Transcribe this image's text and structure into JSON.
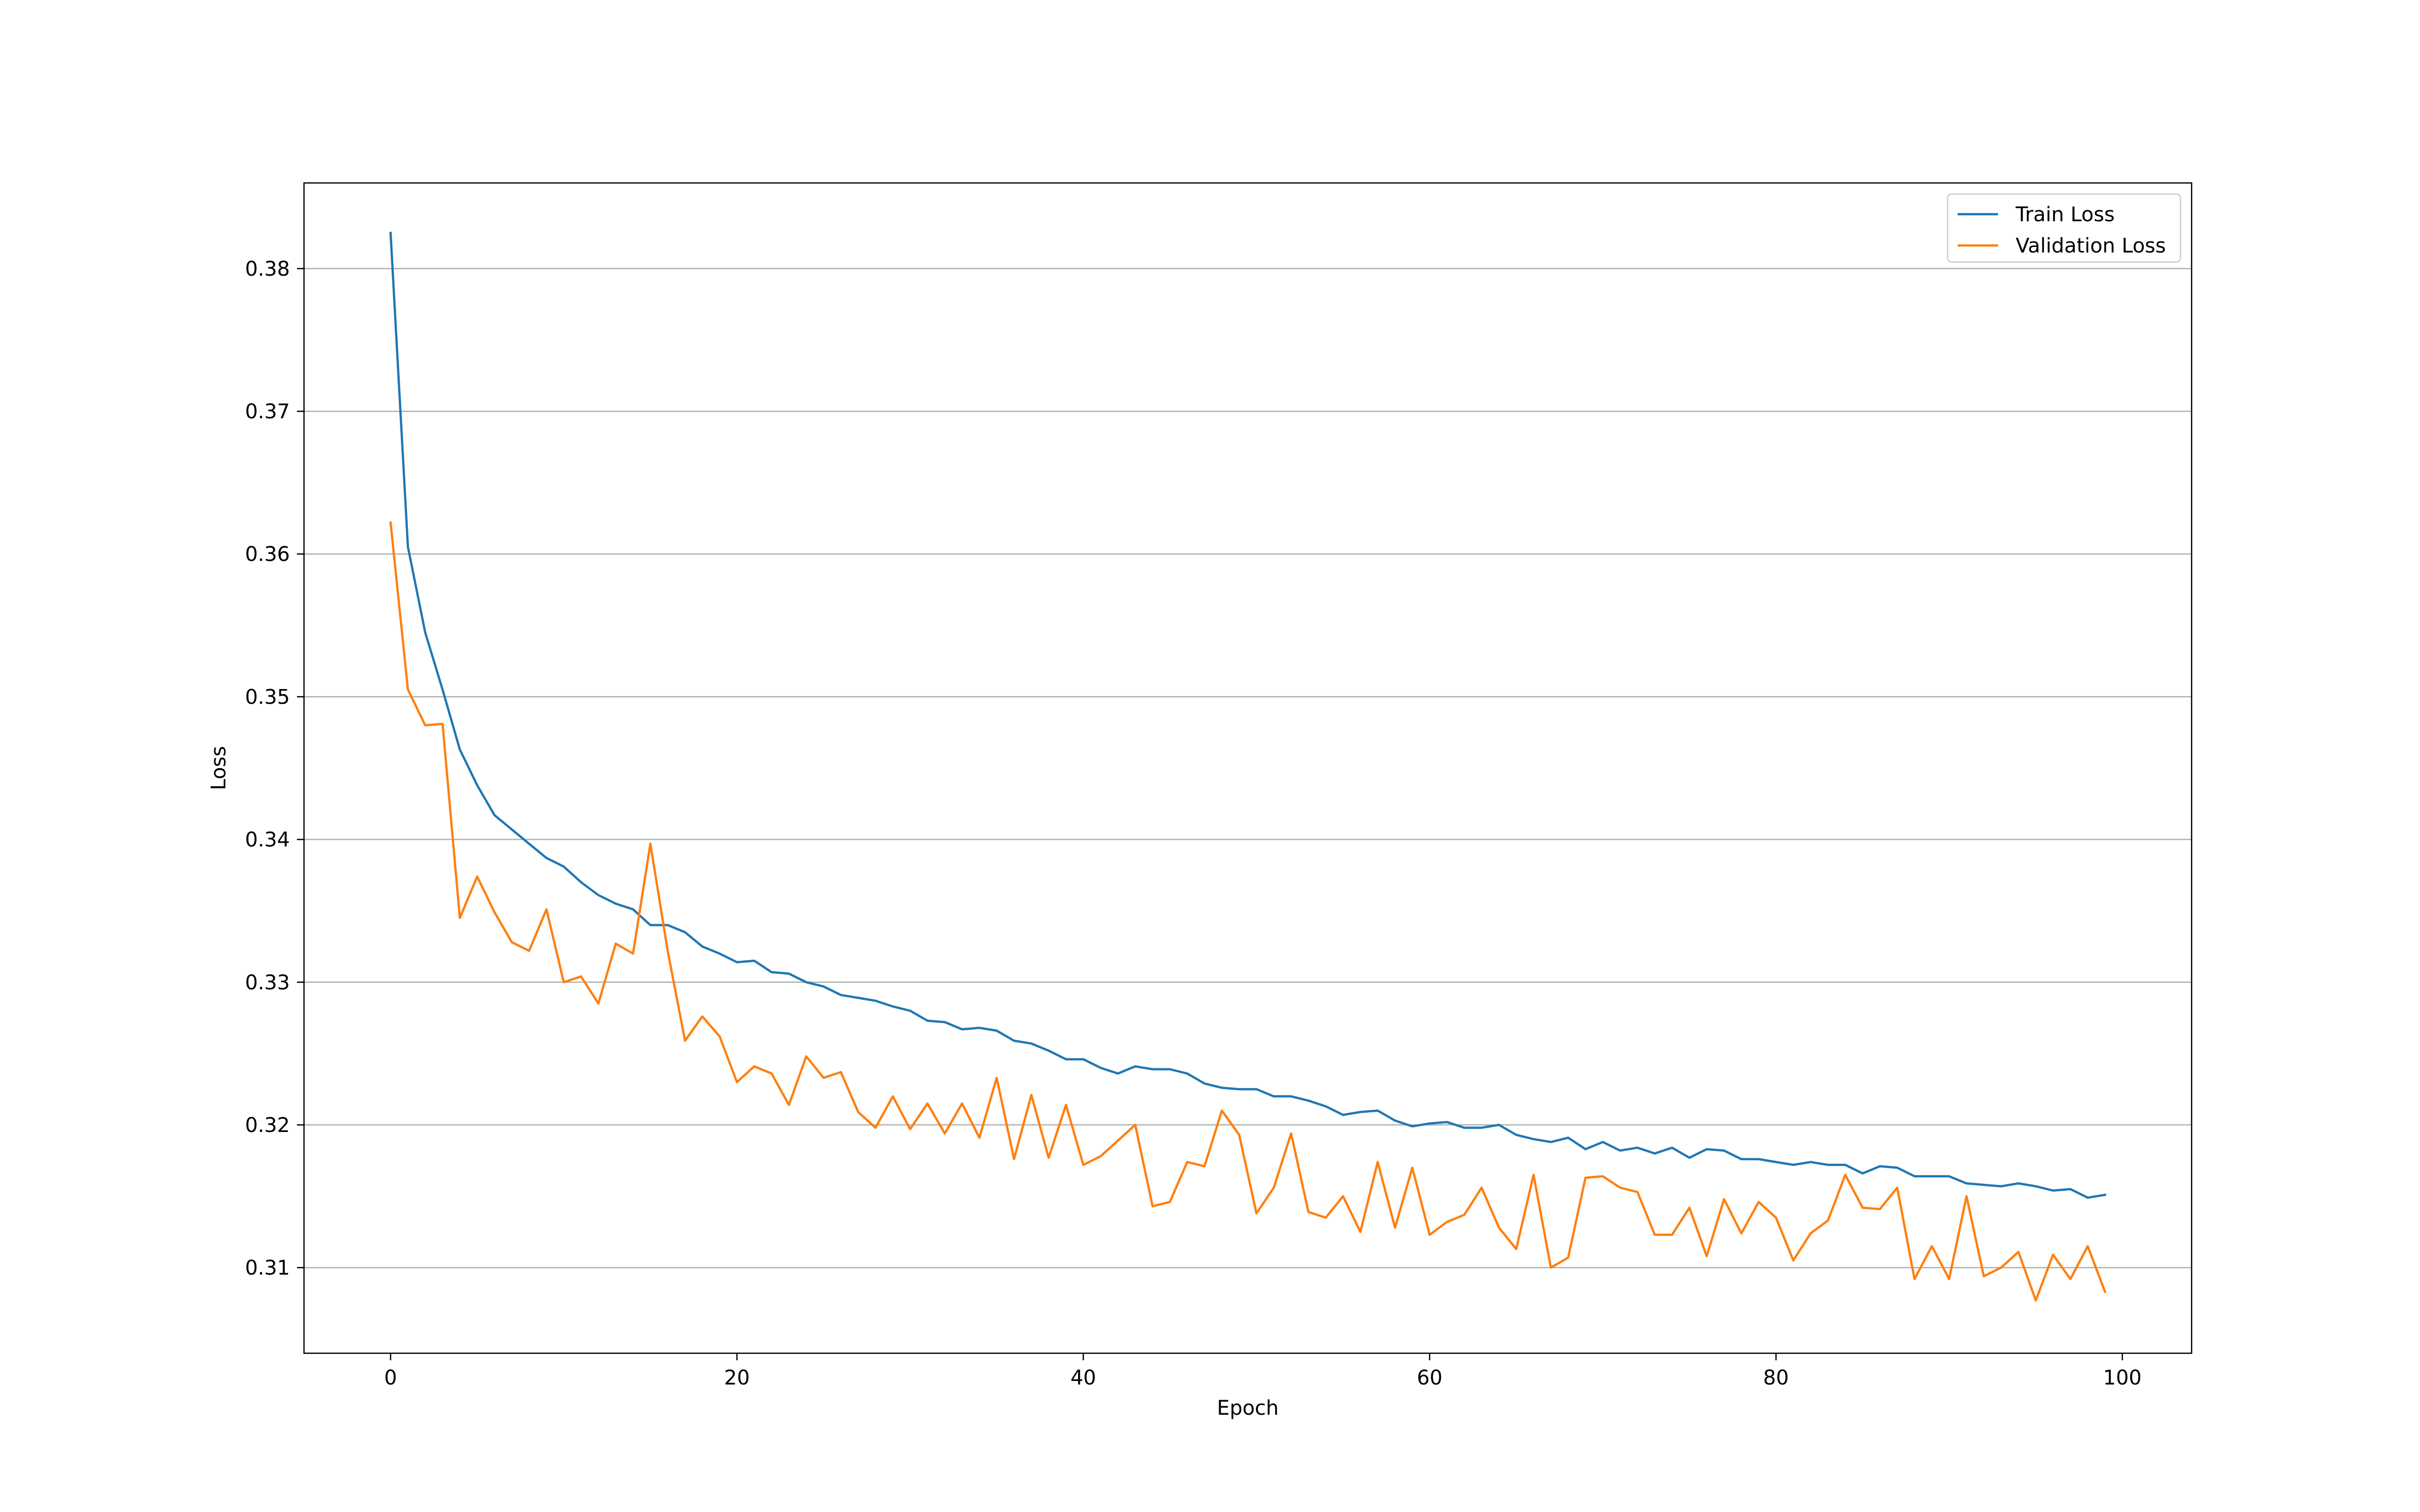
{
  "chart_data": {
    "type": "line",
    "title": "",
    "xlabel": "Epoch",
    "ylabel": "Loss",
    "xlim": [
      -5,
      104
    ],
    "ylim": [
      0.304,
      0.386
    ],
    "xticks": [
      0,
      20,
      40,
      60,
      80,
      100
    ],
    "yticks": [
      0.31,
      0.32,
      0.33,
      0.34,
      0.35,
      0.36,
      0.37,
      0.38
    ],
    "ytick_labels": [
      "0.31",
      "0.32",
      "0.33",
      "0.34",
      "0.35",
      "0.36",
      "0.37",
      "0.38"
    ],
    "grid": "y",
    "legend": "top-right",
    "x": [
      0,
      1,
      2,
      3,
      4,
      5,
      6,
      7,
      8,
      9,
      10,
      11,
      12,
      13,
      14,
      15,
      16,
      17,
      18,
      19,
      20,
      21,
      22,
      23,
      24,
      25,
      26,
      27,
      28,
      29,
      30,
      31,
      32,
      33,
      34,
      35,
      36,
      37,
      38,
      39,
      40,
      41,
      42,
      43,
      44,
      45,
      46,
      47,
      48,
      49,
      50,
      51,
      52,
      53,
      54,
      55,
      56,
      57,
      58,
      59,
      60,
      61,
      62,
      63,
      64,
      65,
      66,
      67,
      68,
      69,
      70,
      71,
      72,
      73,
      74,
      75,
      76,
      77,
      78,
      79,
      80,
      81,
      82,
      83,
      84,
      85,
      86,
      87,
      88,
      89,
      90,
      91,
      92,
      93,
      94,
      95,
      96,
      97,
      98,
      99
    ],
    "series": [
      {
        "name": "Train Loss",
        "color": "#1f77b4",
        "values": [
          0.3825,
          0.3605,
          0.3545,
          0.3505,
          0.3463,
          0.3438,
          0.3417,
          0.3407,
          0.3397,
          0.3387,
          0.3381,
          0.337,
          0.3361,
          0.3355,
          0.3351,
          0.334,
          0.334,
          0.3335,
          0.3325,
          0.332,
          0.3314,
          0.3315,
          0.3307,
          0.3306,
          0.33,
          0.3297,
          0.3291,
          0.3289,
          0.3287,
          0.3283,
          0.328,
          0.3273,
          0.3272,
          0.3267,
          0.3268,
          0.3266,
          0.3259,
          0.3257,
          0.3252,
          0.3246,
          0.3246,
          0.324,
          0.3236,
          0.3241,
          0.3239,
          0.3239,
          0.3236,
          0.3229,
          0.3226,
          0.3225,
          0.3225,
          0.322,
          0.322,
          0.3217,
          0.3213,
          0.3207,
          0.3209,
          0.321,
          0.3203,
          0.3199,
          0.3201,
          0.3202,
          0.3198,
          0.3198,
          0.32,
          0.3193,
          0.319,
          0.3188,
          0.3191,
          0.3183,
          0.3188,
          0.3182,
          0.3184,
          0.318,
          0.3184,
          0.3177,
          0.3183,
          0.3182,
          0.3176,
          0.3176,
          0.3174,
          0.3172,
          0.3174,
          0.3172,
          0.3172,
          0.3166,
          0.3171,
          0.317,
          0.3164,
          0.3164,
          0.3164,
          0.3159,
          0.3158,
          0.3157,
          0.3159,
          0.3157,
          0.3154,
          0.3155,
          0.3149,
          0.3151
        ]
      },
      {
        "name": "Validation Loss",
        "color": "#ff7f0e",
        "values": [
          0.3622,
          0.3505,
          0.348,
          0.3481,
          0.3345,
          0.3374,
          0.3349,
          0.3328,
          0.3322,
          0.3351,
          0.33,
          0.3304,
          0.3285,
          0.3327,
          0.332,
          0.3397,
          0.3322,
          0.3259,
          0.3276,
          0.3262,
          0.323,
          0.3241,
          0.3236,
          0.3214,
          0.3248,
          0.3233,
          0.3237,
          0.3209,
          0.3198,
          0.322,
          0.3197,
          0.3215,
          0.3194,
          0.3215,
          0.3191,
          0.3233,
          0.3176,
          0.3221,
          0.3177,
          0.3214,
          0.3172,
          0.3178,
          0.3189,
          0.32,
          0.3143,
          0.3146,
          0.3174,
          0.3171,
          0.321,
          0.3193,
          0.3138,
          0.3156,
          0.3194,
          0.3139,
          0.3135,
          0.315,
          0.3125,
          0.3174,
          0.3128,
          0.317,
          0.3123,
          0.3132,
          0.3137,
          0.3156,
          0.3128,
          0.3113,
          0.3165,
          0.31,
          0.3107,
          0.3163,
          0.3164,
          0.3156,
          0.3153,
          0.3123,
          0.3123,
          0.3142,
          0.3108,
          0.3148,
          0.3124,
          0.3146,
          0.3135,
          0.3105,
          0.3124,
          0.3133,
          0.3165,
          0.3142,
          0.3141,
          0.3156,
          0.3092,
          0.3115,
          0.3092,
          0.315,
          0.3094,
          0.31,
          0.3111,
          0.3077,
          0.3109,
          0.3092,
          0.3115,
          0.3083
        ]
      }
    ]
  }
}
